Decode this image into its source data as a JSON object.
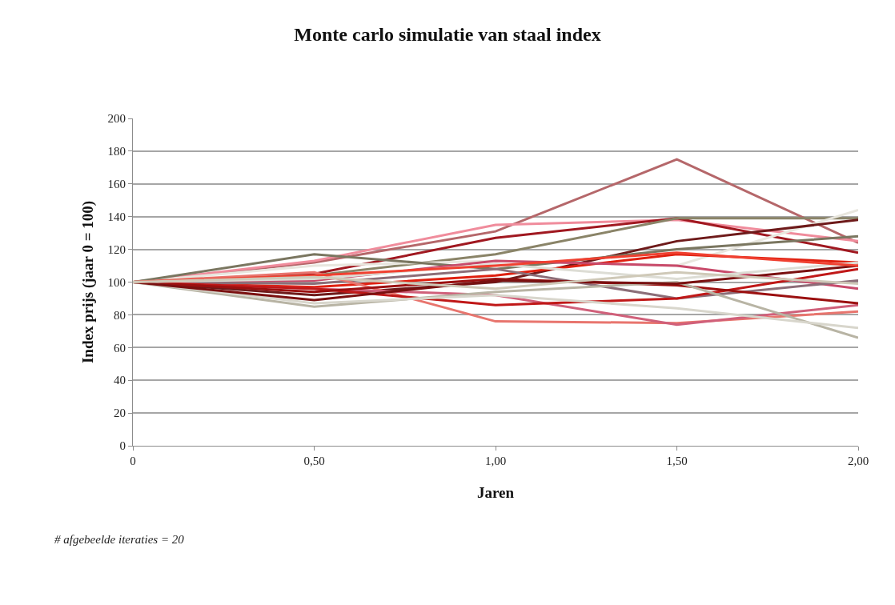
{
  "chart_data": {
    "type": "line",
    "title": "Monte carlo simulatie van staal index",
    "xlabel": "Jaren",
    "ylabel": "Index prijs (jaar 0 = 100)",
    "annotations": [
      "# afgebeelde iteraties = 20"
    ],
    "x": [
      0,
      0.5,
      1,
      1.5,
      2
    ],
    "xlim": [
      0,
      2
    ],
    "xticks": [
      0,
      {
        "value": 0.5,
        "label": "0,50"
      },
      {
        "value": 1,
        "label": "1,00"
      },
      {
        "value": 1.5,
        "label": "1,50"
      },
      {
        "value": 2,
        "label": "2,00"
      }
    ],
    "ylim": [
      0,
      200
    ],
    "yticks": [
      0,
      20,
      40,
      60,
      80,
      100,
      120,
      140,
      160,
      180,
      200
    ],
    "grid": "y",
    "marker": "none",
    "line_style": "solid",
    "series": [
      {
        "color": "#b5676a",
        "values": [
          100,
          112,
          131,
          175,
          124
        ]
      },
      {
        "color": "#f08c9c",
        "values": [
          100,
          113,
          135,
          138,
          125
        ]
      },
      {
        "color": "#a01820",
        "values": [
          100,
          105,
          127,
          139,
          118
        ]
      },
      {
        "color": "#8a8468",
        "values": [
          100,
          104,
          117,
          139,
          139
        ]
      },
      {
        "color": "#e8e6de",
        "values": [
          100,
          110,
          113,
          110,
          144
        ]
      },
      {
        "color": "#6e1a1a",
        "values": [
          100,
          92,
          100,
          125,
          138
        ]
      },
      {
        "color": "#7a7660",
        "values": [
          100,
          117,
          108,
          120,
          128
        ]
      },
      {
        "color": "#e02010",
        "values": [
          100,
          97,
          104,
          117,
          112
        ]
      },
      {
        "color": "#c84a6a",
        "values": [
          100,
          101,
          113,
          110,
          96
        ]
      },
      {
        "color": "#8c6e78",
        "values": [
          100,
          99,
          108,
          90,
          101
        ]
      },
      {
        "color": "#e8756e",
        "values": [
          100,
          106,
          76,
          75,
          82
        ]
      },
      {
        "color": "#d0607a",
        "values": [
          100,
          96,
          92,
          74,
          86
        ]
      },
      {
        "color": "#c01818",
        "values": [
          100,
          96,
          86,
          90,
          108
        ]
      },
      {
        "color": "#9b1010",
        "values": [
          100,
          94,
          102,
          98,
          87
        ]
      },
      {
        "color": "#b8b4a4",
        "values": [
          100,
          85,
          94,
          100,
          66
        ]
      },
      {
        "color": "#d8d6cc",
        "values": [
          100,
          87,
          92,
          84,
          72
        ]
      },
      {
        "color": "#ddddd5",
        "values": [
          100,
          102,
          111,
          102,
          112
        ]
      },
      {
        "color": "#7a1010",
        "values": [
          100,
          89,
          101,
          99,
          110
        ]
      },
      {
        "color": "#f04030",
        "values": [
          100,
          104,
          110,
          118,
          110
        ]
      },
      {
        "color": "#cfc9b8",
        "values": [
          100,
          103,
          96,
          106,
          99
        ]
      }
    ]
  }
}
